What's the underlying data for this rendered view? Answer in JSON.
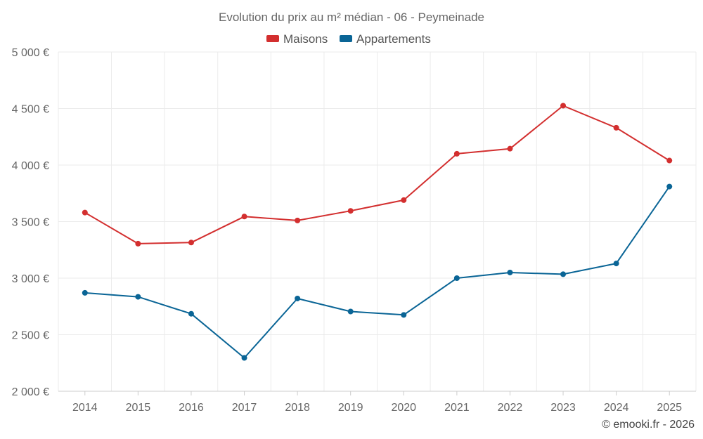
{
  "chart_data": {
    "type": "line",
    "title": "Evolution du prix au m² médian - 06 - Peymeinade",
    "categories": [
      "2014",
      "2015",
      "2016",
      "2017",
      "2018",
      "2019",
      "2020",
      "2021",
      "2022",
      "2023",
      "2024",
      "2025"
    ],
    "series": [
      {
        "name": "Maisons",
        "color": "#d32f2f",
        "values": [
          3580,
          3305,
          3315,
          3545,
          3510,
          3595,
          3690,
          4100,
          4145,
          4525,
          4330,
          4040
        ]
      },
      {
        "name": "Appartements",
        "color": "#0a6596",
        "values": [
          2870,
          2835,
          2685,
          2295,
          2820,
          2705,
          2675,
          3000,
          3050,
          3035,
          3130,
          3810
        ]
      }
    ],
    "ylim": [
      2000,
      5000
    ],
    "yticks": [
      2000,
      2500,
      3000,
      3500,
      4000,
      4500,
      5000
    ],
    "ytick_labels": [
      "2 000 €",
      "2 500 €",
      "3 000 €",
      "3 500 €",
      "4 000 €",
      "4 500 €",
      "5 000 €"
    ],
    "xlabel": "",
    "ylabel": "",
    "grid": true,
    "legend_position": "top-center"
  },
  "credit": "© emooki.fr - 2026"
}
